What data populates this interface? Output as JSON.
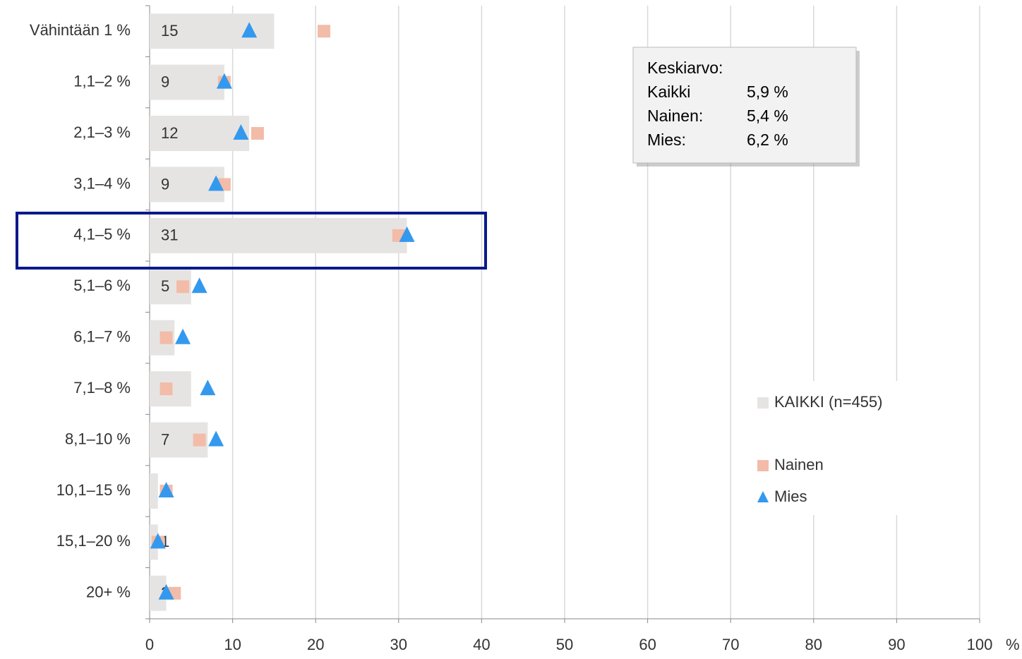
{
  "chart_data": {
    "type": "bar",
    "categories": [
      "Vähintään 1 %",
      "1,1–2 %",
      "2,1–3 %",
      "3,1–4 %",
      "4,1–5 %",
      "5,1–6 %",
      "6,1–7 %",
      "7,1–8 %",
      "8,1–10 %",
      "10,1–15 %",
      "15,1–20 %",
      "20+ %"
    ],
    "series": [
      {
        "name": "KAIKKI (n=455)",
        "color": "#e6e4e2",
        "marker": "bar",
        "values": [
          15,
          9,
          12,
          9,
          31,
          5,
          3,
          5,
          7,
          1,
          1,
          2
        ]
      },
      {
        "name": "Nainen",
        "color": "#f2bca9",
        "marker": "square",
        "values": [
          21,
          9,
          13,
          9,
          30,
          4,
          2,
          2,
          6,
          2,
          1,
          3
        ]
      },
      {
        "name": "Mies",
        "color": "#3399ee",
        "marker": "triangle",
        "values": [
          12,
          9,
          11,
          8,
          31,
          6,
          4,
          7,
          8,
          2,
          1,
          2
        ]
      }
    ],
    "xlim": [
      0,
      100
    ],
    "xticks": [
      0,
      10,
      20,
      30,
      40,
      50,
      60,
      70,
      80,
      90,
      100
    ],
    "x_unit": "%",
    "grid": true,
    "note": {
      "title": "Keskiarvo:",
      "rows": [
        [
          "Kaikki",
          "5,9 %"
        ],
        [
          "Nainen:",
          "5,4 %"
        ],
        [
          "Mies:",
          "6,2 %"
        ]
      ]
    }
  }
}
